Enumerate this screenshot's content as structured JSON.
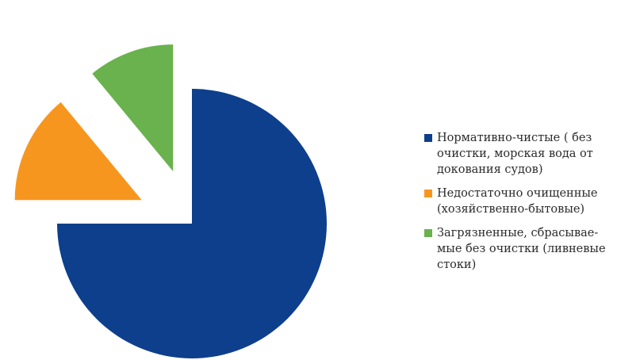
{
  "chart_data": {
    "type": "pie",
    "title": "",
    "series": [
      {
        "name": "",
        "slices": [
          {
            "label": "Нормативно-чистые ( без\nочистки, морская вода от\nдокования судов)",
            "value": 75,
            "color": "#0e3f8c"
          },
          {
            "label": "Недостаточно очищенные\n(хозяйственно-бытовые)",
            "value": 14,
            "color": "#f7961e"
          },
          {
            "label": "Загрязненные, сбрасывае-\nмые без очистки (ливневые\nстоки)",
            "value": 11,
            "color": "#6ab24d"
          }
        ]
      }
    ],
    "legend_position": "right"
  }
}
